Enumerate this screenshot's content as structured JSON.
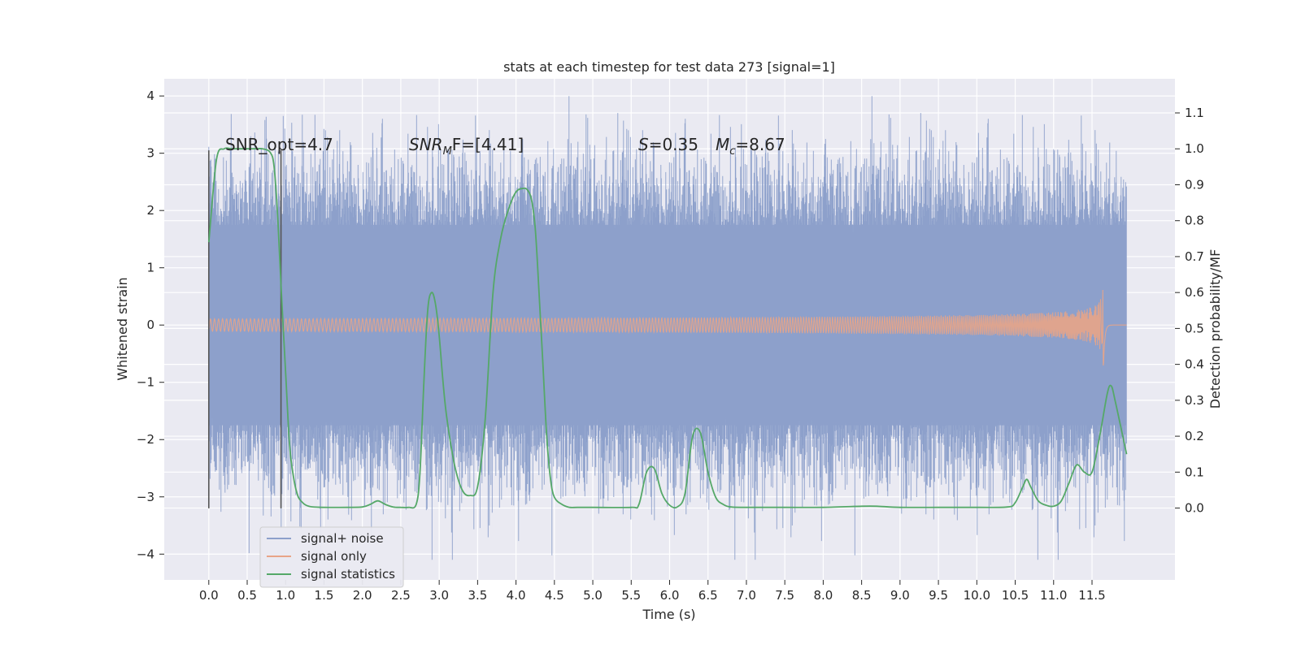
{
  "chart_data": {
    "type": "line",
    "title": "stats at each timestep for test data 273 [signal=1]",
    "xlabel": "Time (s)",
    "ylabel_left": "Whitened strain",
    "ylabel_right": "Detection probability/MF",
    "xlim": [
      -0.58,
      12.58
    ],
    "ylim_left": [
      -4.45,
      4.3
    ],
    "ylim_right": [
      -0.2,
      1.195
    ],
    "x_ticks": [
      "0.0",
      "0.5",
      "1.0",
      "1.5",
      "2.0",
      "2.5",
      "3.0",
      "3.5",
      "4.0",
      "4.5",
      "5.0",
      "5.5",
      "6.0",
      "6.5",
      "7.0",
      "7.5",
      "8.0",
      "8.5",
      "9.0",
      "9.5",
      "10.0",
      "10.5",
      "11.0",
      "11.5"
    ],
    "y_ticks_left": [
      "4",
      "3",
      "2",
      "1",
      "0",
      "−1",
      "−2",
      "−3",
      "−4"
    ],
    "y_ticks_right": [
      "1.1",
      "1.0",
      "0.9",
      "0.8",
      "0.7",
      "0.6",
      "0.5",
      "0.4",
      "0.3",
      "0.2",
      "0.1",
      "0.0"
    ],
    "grid": true,
    "legend_position": "lower-left",
    "annotations": {
      "snr_opt": "SNR_opt=4.7",
      "snr_mf_base": "SNR",
      "snr_mf_sub": "M",
      "snr_mf_rest": "F=[4.41]",
      "s_label": "S",
      "s_value": "=0.35",
      "mc_base": "M",
      "mc_sub": "c",
      "mc_value": "=8.67"
    },
    "colors": {
      "signal_noise": "#8da0cb",
      "signal_only": "#e8a487",
      "statistics": "#55a868",
      "vline": "#555555",
      "axes_bg": "#eaeaf2",
      "grid": "#ffffff"
    },
    "vertical_lines": [
      0.0,
      0.94
    ],
    "series": [
      {
        "name": "signal+ noise",
        "noise_envelope": {
          "x": [
            0,
            11.95
          ],
          "core_abs": 1.75,
          "peak_max": 4.0,
          "peak_min": -4.1
        }
      },
      {
        "name": "signal only",
        "chirp": {
          "x_start": 0.0,
          "x_merger": 11.65,
          "x_end": 11.95,
          "peak_amplitude": 0.8
        }
      },
      {
        "name": "signal statistics",
        "x": [
          0.0,
          0.1,
          0.2,
          0.3,
          0.4,
          0.5,
          0.6,
          0.7,
          0.8,
          0.85,
          0.9,
          0.94,
          1.0,
          1.05,
          1.1,
          1.15,
          1.2,
          1.3,
          1.5,
          1.8,
          2.0,
          2.1,
          2.2,
          2.3,
          2.4,
          2.5,
          2.6,
          2.7,
          2.75,
          2.8,
          2.85,
          2.9,
          2.95,
          3.0,
          3.05,
          3.1,
          3.2,
          3.3,
          3.4,
          3.5,
          3.6,
          3.7,
          3.8,
          3.9,
          4.0,
          4.1,
          4.15,
          4.2,
          4.25,
          4.3,
          4.35,
          4.4,
          4.45,
          4.5,
          4.6,
          4.7,
          4.8,
          5.0,
          5.5,
          5.6,
          5.7,
          5.8,
          5.9,
          6.0,
          6.1,
          6.2,
          6.3,
          6.4,
          6.5,
          6.6,
          6.7,
          6.8,
          7.0,
          7.5,
          8.0,
          8.5,
          8.7,
          9.0,
          9.5,
          10.0,
          10.4,
          10.5,
          10.6,
          10.65,
          10.7,
          10.8,
          10.9,
          11.0,
          11.1,
          11.2,
          11.3,
          11.4,
          11.5,
          11.6,
          11.7,
          11.75,
          11.8,
          11.9,
          11.95
        ],
        "y": [
          0.74,
          0.97,
          1.0,
          1.0,
          1.0,
          1.0,
          1.0,
          1.0,
          0.99,
          0.95,
          0.8,
          0.62,
          0.38,
          0.18,
          0.09,
          0.04,
          0.02,
          0.005,
          0.002,
          0.002,
          0.003,
          0.01,
          0.02,
          0.01,
          0.003,
          0.002,
          0.002,
          0.01,
          0.1,
          0.35,
          0.55,
          0.6,
          0.57,
          0.48,
          0.35,
          0.25,
          0.12,
          0.05,
          0.035,
          0.06,
          0.25,
          0.6,
          0.75,
          0.83,
          0.88,
          0.89,
          0.885,
          0.86,
          0.78,
          0.6,
          0.4,
          0.2,
          0.08,
          0.03,
          0.01,
          0.002,
          0.002,
          0.002,
          0.002,
          0.01,
          0.1,
          0.11,
          0.04,
          0.008,
          0.003,
          0.04,
          0.2,
          0.21,
          0.1,
          0.03,
          0.01,
          0.003,
          0.002,
          0.002,
          0.002,
          0.005,
          0.005,
          0.002,
          0.002,
          0.002,
          0.003,
          0.015,
          0.06,
          0.08,
          0.06,
          0.02,
          0.008,
          0.005,
          0.02,
          0.07,
          0.12,
          0.1,
          0.1,
          0.2,
          0.32,
          0.34,
          0.3,
          0.2,
          0.15
        ]
      }
    ]
  }
}
